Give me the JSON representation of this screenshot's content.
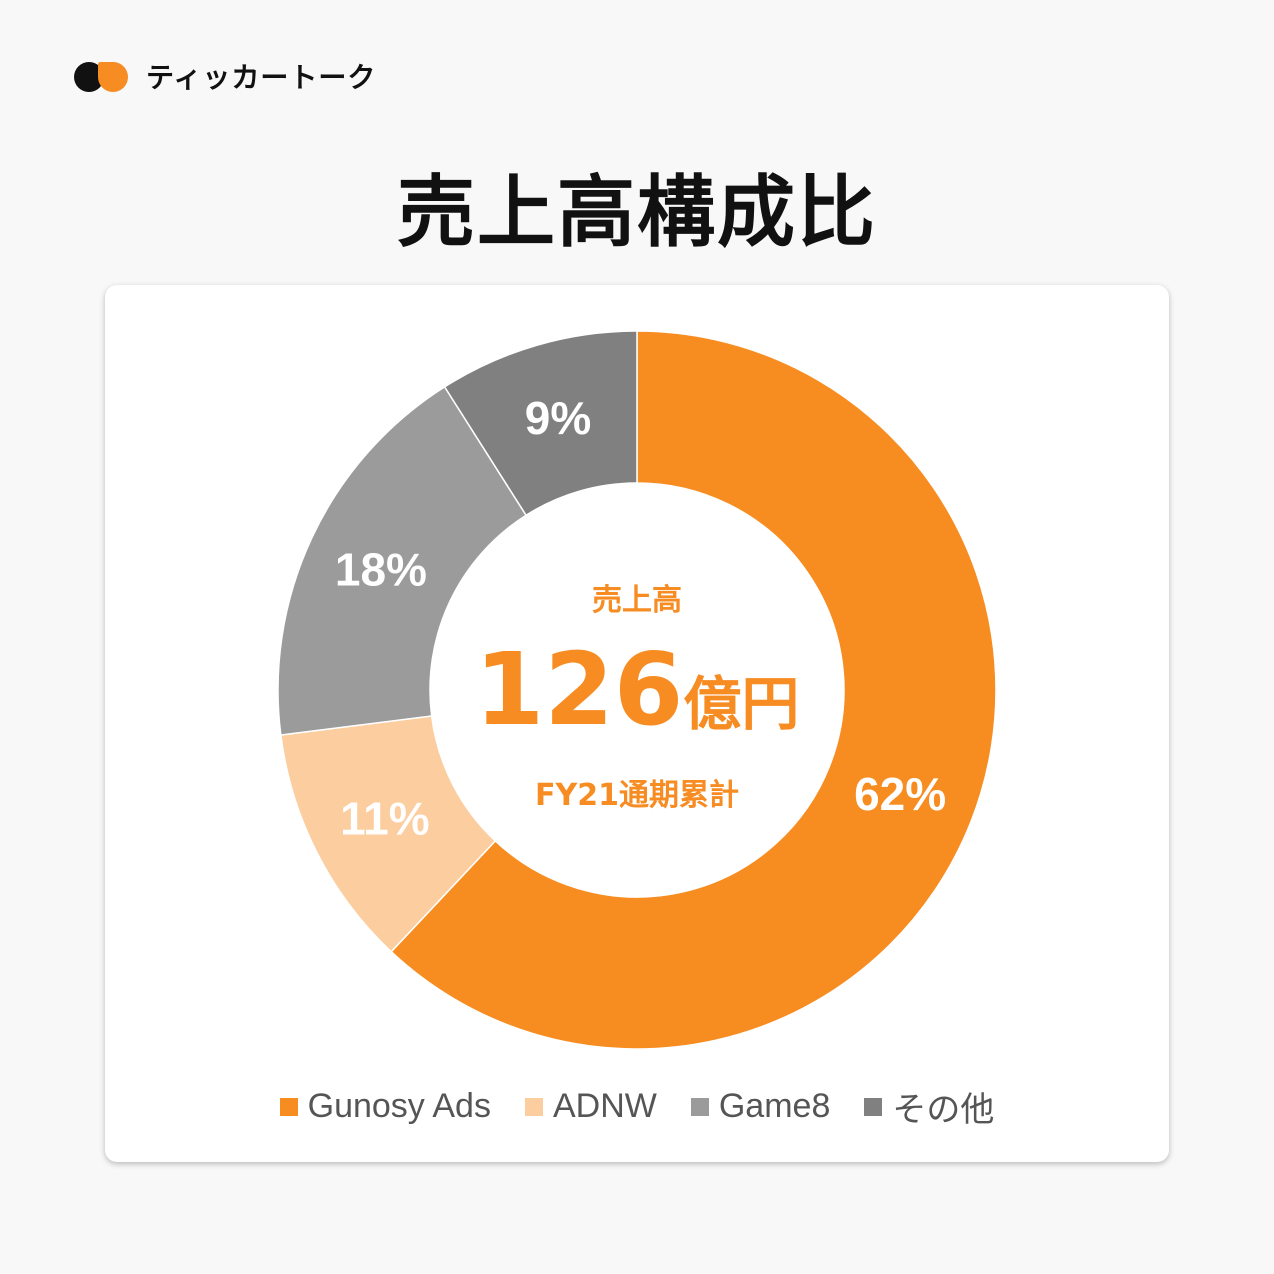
{
  "brand": {
    "name": "ティッカートーク",
    "colors": {
      "dark": "#111111",
      "accent": "#f78c23"
    }
  },
  "page_title": "売上高構成比",
  "center": {
    "label": "売上高",
    "amount": "126",
    "unit": "億円",
    "period": "FY21通期累計",
    "color": "#f78c23"
  },
  "chart_data": {
    "type": "pie",
    "variant": "donut",
    "categories": [
      "Gunosy Ads",
      "ADNW",
      "Game8",
      "その他"
    ],
    "values": [
      62,
      11,
      18,
      9
    ],
    "labels": [
      "62%",
      "11%",
      "18%",
      "9%"
    ],
    "colors": [
      "#f78c20",
      "#fbcd9f",
      "#9b9b9b",
      "#808080"
    ],
    "legend_position": "bottom"
  }
}
